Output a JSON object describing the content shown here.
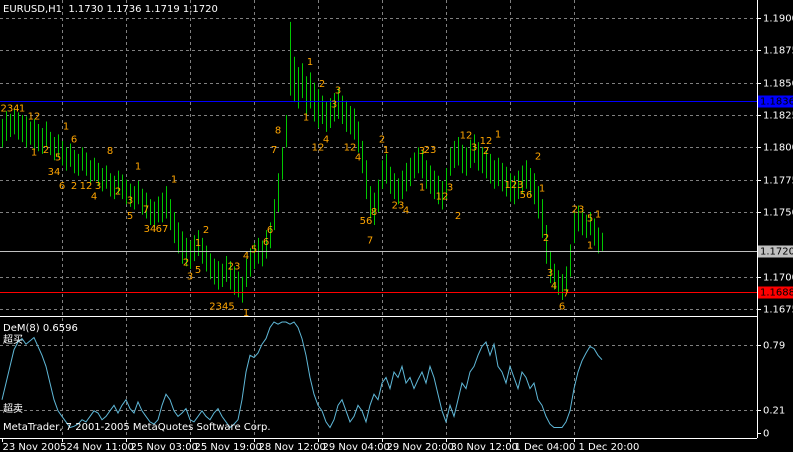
{
  "chart_data": {
    "type": "ohlc",
    "title": "EURUSD,H1  1.1730 1.1736 1.1719 1.1720",
    "color": "#00c800",
    "grid": true,
    "xlim": [
      -0.5,
      188.75
    ],
    "xticks": [
      {
        "value": 0,
        "label": "23 Nov 2005"
      },
      {
        "value": 15,
        "label": "24 Nov 11:00"
      },
      {
        "value": 31,
        "label": "25 Nov 03:00"
      },
      {
        "value": 47,
        "label": "25 Nov 19:00"
      },
      {
        "value": 63,
        "label": "28 Nov 12:00"
      },
      {
        "value": 79,
        "label": "29 Nov 04:00"
      },
      {
        "value": 95,
        "label": "29 Nov 20:00"
      },
      {
        "value": 111,
        "label": "30 Nov 12:00"
      },
      {
        "value": 127,
        "label": "1 Dec 04:00"
      },
      {
        "value": 143,
        "label": "1 Dec 20:00"
      }
    ],
    "ylim": [
      1.16704,
      1.19139
    ],
    "yticks": [
      {
        "value": 1.19,
        "label": "1.1900"
      },
      {
        "value": 1.1875,
        "label": "1.1875"
      },
      {
        "value": 1.185,
        "label": "1.1850"
      },
      {
        "value": 1.1825,
        "label": "1.1825"
      },
      {
        "value": 1.18,
        "label": "1.1800"
      },
      {
        "value": 1.1775,
        "label": "1.1775"
      },
      {
        "value": 1.175,
        "label": "1.1750"
      },
      {
        "value": 1.17,
        "label": "1.1700"
      },
      {
        "value": 1.1675,
        "label": "1.1675"
      }
    ],
    "high": [
      1.1822,
      1.1828,
      1.1826,
      1.183,
      1.1827,
      1.1825,
      1.1824,
      1.182,
      1.1822,
      1.1818,
      1.1815,
      1.182,
      1.1812,
      1.1808,
      1.181,
      1.1805,
      1.18,
      1.1803,
      1.1798,
      1.1795,
      1.18,
      1.1796,
      1.179,
      1.1792,
      1.1788,
      1.1784,
      1.1786,
      1.178,
      1.1778,
      1.1782,
      1.1779,
      1.1775,
      1.1772,
      1.177,
      1.1774,
      1.1768,
      1.1765,
      1.176,
      1.1758,
      1.1762,
      1.1765,
      1.177,
      1.176,
      1.175,
      1.1742,
      1.1735,
      1.173,
      1.1728,
      1.1732,
      1.1736,
      1.173,
      1.1724,
      1.1718,
      1.1714,
      1.1712,
      1.171,
      1.1716,
      1.1712,
      1.1708,
      1.1704,
      1.17,
      1.1714,
      1.1722,
      1.1726,
      1.173,
      1.1728,
      1.1736,
      1.1742,
      1.176,
      1.178,
      1.18,
      1.1825,
      1.1897,
      1.187,
      1.1862,
      1.1865,
      1.1855,
      1.1858,
      1.185,
      1.1845,
      1.184,
      1.1835,
      1.1838,
      1.1842,
      1.1846,
      1.184,
      1.1836,
      1.1832,
      1.183,
      1.182,
      1.1805,
      1.179,
      1.177,
      1.1765,
      1.1775,
      1.179,
      1.1795,
      1.1785,
      1.178,
      1.1776,
      1.1782,
      1.1788,
      1.1792,
      1.1796,
      1.18,
      1.1798,
      1.179,
      1.1786,
      1.1782,
      1.1778,
      1.1774,
      1.1784,
      1.18,
      1.1805,
      1.1808,
      1.1802,
      1.18,
      1.1806,
      1.181,
      1.1804,
      1.18,
      1.1798,
      1.1795,
      1.179,
      1.1792,
      1.1788,
      1.1785,
      1.178,
      1.1778,
      1.1782,
      1.1786,
      1.179,
      1.1784,
      1.178,
      1.177,
      1.176,
      1.174,
      1.172,
      1.171,
      1.1705,
      1.1702,
      1.1708,
      1.1725,
      1.175,
      1.1755,
      1.1752,
      1.1748,
      1.175,
      1.1745,
      1.1738,
      1.1734
    ],
    "low": [
      1.18,
      1.1805,
      1.1808,
      1.181,
      1.1806,
      1.1804,
      1.18,
      1.1802,
      1.1798,
      1.1797,
      1.1795,
      1.18,
      1.1794,
      1.179,
      1.1792,
      1.1786,
      1.1782,
      1.1785,
      1.178,
      1.1778,
      1.1782,
      1.1778,
      1.1772,
      1.1774,
      1.177,
      1.1766,
      1.1768,
      1.1762,
      1.176,
      1.1764,
      1.176,
      1.1756,
      1.1754,
      1.1752,
      1.1756,
      1.1748,
      1.1745,
      1.174,
      1.1738,
      1.1742,
      1.1742,
      1.1745,
      1.1736,
      1.1726,
      1.1718,
      1.171,
      1.1708,
      1.1706,
      1.1712,
      1.1716,
      1.171,
      1.1704,
      1.1698,
      1.1694,
      1.169,
      1.1692,
      1.1696,
      1.169,
      1.1686,
      1.1684,
      1.168,
      1.1692,
      1.17,
      1.1706,
      1.171,
      1.1708,
      1.1714,
      1.1722,
      1.1736,
      1.175,
      1.1775,
      1.18,
      1.184,
      1.1835,
      1.183,
      1.1838,
      1.1825,
      1.183,
      1.182,
      1.1815,
      1.1818,
      1.1812,
      1.1815,
      1.182,
      1.1822,
      1.1818,
      1.1812,
      1.181,
      1.1806,
      1.1796,
      1.178,
      1.176,
      1.1745,
      1.174,
      1.175,
      1.1768,
      1.1772,
      1.1764,
      1.176,
      1.1756,
      1.176,
      1.1766,
      1.177,
      1.1776,
      1.178,
      1.1776,
      1.1768,
      1.1764,
      1.176,
      1.1756,
      1.1752,
      1.176,
      1.1778,
      1.1784,
      1.1786,
      1.178,
      1.1778,
      1.1784,
      1.1788,
      1.1782,
      1.178,
      1.1776,
      1.1772,
      1.1768,
      1.177,
      1.1766,
      1.1762,
      1.1758,
      1.1756,
      1.176,
      1.1764,
      1.1768,
      1.1762,
      1.1756,
      1.1745,
      1.173,
      1.171,
      1.1695,
      1.169,
      1.1686,
      1.1682,
      1.1688,
      1.17,
      1.1726,
      1.1735,
      1.1732,
      1.173,
      1.1732,
      1.1724,
      1.1718,
      1.172
    ],
    "levels": [
      {
        "value": 1.1836,
        "label": "1.1836",
        "color": "#0000ff"
      },
      {
        "value": 1.172,
        "label": "1.1720",
        "color": "#c0c0c0"
      },
      {
        "value": 1.1688,
        "label": "1.1688",
        "color": "#ff0000"
      }
    ],
    "annotation_color": "#ffa500",
    "annotations": [
      {
        "x": 2,
        "y": 1.183,
        "text": "234"
      },
      {
        "x": 5,
        "y": 1.183,
        "text": "1"
      },
      {
        "x": 8,
        "y": 1.1824,
        "text": "12"
      },
      {
        "x": 16,
        "y": 1.1816,
        "text": "1"
      },
      {
        "x": 8,
        "y": 1.1796,
        "text": "1"
      },
      {
        "x": 11,
        "y": 1.1798,
        "text": "2"
      },
      {
        "x": 14,
        "y": 1.1792,
        "text": "5"
      },
      {
        "x": 18,
        "y": 1.1806,
        "text": "6"
      },
      {
        "x": 13,
        "y": 1.1781,
        "text": "34"
      },
      {
        "x": 15,
        "y": 1.177,
        "text": "6"
      },
      {
        "x": 18,
        "y": 1.177,
        "text": "2"
      },
      {
        "x": 21,
        "y": 1.177,
        "text": "12"
      },
      {
        "x": 24,
        "y": 1.177,
        "text": "3"
      },
      {
        "x": 23,
        "y": 1.1762,
        "text": "4"
      },
      {
        "x": 27,
        "y": 1.1797,
        "text": "8"
      },
      {
        "x": 34,
        "y": 1.1785,
        "text": "1"
      },
      {
        "x": 29,
        "y": 1.1766,
        "text": "2"
      },
      {
        "x": 32,
        "y": 1.1759,
        "text": "3"
      },
      {
        "x": 32,
        "y": 1.1747,
        "text": "5"
      },
      {
        "x": 36,
        "y": 1.1752,
        "text": "7"
      },
      {
        "x": 37,
        "y": 1.1737,
        "text": "34"
      },
      {
        "x": 40,
        "y": 1.1737,
        "text": "67"
      },
      {
        "x": 43,
        "y": 1.1775,
        "text": "1"
      },
      {
        "x": 51,
        "y": 1.1736,
        "text": "2"
      },
      {
        "x": 49,
        "y": 1.1726,
        "text": "1"
      },
      {
        "x": 46,
        "y": 1.1711,
        "text": "2"
      },
      {
        "x": 47,
        "y": 1.17,
        "text": "3"
      },
      {
        "x": 49,
        "y": 1.1705,
        "text": "5"
      },
      {
        "x": 58,
        "y": 1.1708,
        "text": "23"
      },
      {
        "x": 55,
        "y": 1.1677,
        "text": "2345"
      },
      {
        "x": 61,
        "y": 1.1672,
        "text": "1"
      },
      {
        "x": 61,
        "y": 1.1716,
        "text": "4"
      },
      {
        "x": 63,
        "y": 1.1721,
        "text": "5"
      },
      {
        "x": 66,
        "y": 1.1727,
        "text": "6"
      },
      {
        "x": 67,
        "y": 1.1736,
        "text": "6"
      },
      {
        "x": 68,
        "y": 1.1798,
        "text": "7"
      },
      {
        "x": 69,
        "y": 1.1813,
        "text": "8"
      },
      {
        "x": 77,
        "y": 1.1866,
        "text": "1"
      },
      {
        "x": 80,
        "y": 1.1849,
        "text": "2"
      },
      {
        "x": 84,
        "y": 1.1844,
        "text": "3"
      },
      {
        "x": 76,
        "y": 1.1823,
        "text": "1"
      },
      {
        "x": 81,
        "y": 1.1806,
        "text": "4"
      },
      {
        "x": 79,
        "y": 1.18,
        "text": "12"
      },
      {
        "x": 83,
        "y": 1.1833,
        "text": "3"
      },
      {
        "x": 87,
        "y": 1.18,
        "text": "12"
      },
      {
        "x": 89,
        "y": 1.1792,
        "text": "4"
      },
      {
        "x": 95,
        "y": 1.1806,
        "text": "2"
      },
      {
        "x": 96,
        "y": 1.1798,
        "text": "1"
      },
      {
        "x": 91,
        "y": 1.1743,
        "text": "56"
      },
      {
        "x": 93,
        "y": 1.175,
        "text": "8"
      },
      {
        "x": 92,
        "y": 1.1728,
        "text": "7"
      },
      {
        "x": 99,
        "y": 1.1755,
        "text": "23"
      },
      {
        "x": 101,
        "y": 1.1751,
        "text": "4"
      },
      {
        "x": 105,
        "y": 1.1797,
        "text": "3"
      },
      {
        "x": 107,
        "y": 1.1798,
        "text": "23"
      },
      {
        "x": 105,
        "y": 1.1769,
        "text": "1"
      },
      {
        "x": 110,
        "y": 1.1762,
        "text": "12"
      },
      {
        "x": 112,
        "y": 1.1769,
        "text": "3"
      },
      {
        "x": 114,
        "y": 1.1747,
        "text": "2"
      },
      {
        "x": 116,
        "y": 1.1809,
        "text": "12"
      },
      {
        "x": 118,
        "y": 1.18,
        "text": "3"
      },
      {
        "x": 121,
        "y": 1.1805,
        "text": "12"
      },
      {
        "x": 121,
        "y": 1.1797,
        "text": "2"
      },
      {
        "x": 124,
        "y": 1.181,
        "text": "1"
      },
      {
        "x": 128,
        "y": 1.1771,
        "text": "123"
      },
      {
        "x": 131,
        "y": 1.1763,
        "text": "56"
      },
      {
        "x": 134,
        "y": 1.1793,
        "text": "2"
      },
      {
        "x": 135,
        "y": 1.1768,
        "text": "1"
      },
      {
        "x": 136,
        "y": 1.173,
        "text": "2"
      },
      {
        "x": 137,
        "y": 1.1703,
        "text": "3"
      },
      {
        "x": 138,
        "y": 1.1693,
        "text": "4"
      },
      {
        "x": 141,
        "y": 1.1687,
        "text": "7"
      },
      {
        "x": 140,
        "y": 1.1677,
        "text": "6"
      },
      {
        "x": 144,
        "y": 1.1752,
        "text": "23"
      },
      {
        "x": 147,
        "y": 1.1745,
        "text": "5"
      },
      {
        "x": 149,
        "y": 1.1748,
        "text": "1"
      },
      {
        "x": 147,
        "y": 1.1724,
        "text": "1"
      }
    ],
    "indicator": {
      "type": "line",
      "title": "DeM(8) 0.6596",
      "overbought_label": "超买",
      "oversold_label": "超卖",
      "color": "#5fb8d8",
      "ylim": [
        -0.045,
        1.036
      ],
      "yticks": [
        0.79,
        0.21,
        0
      ],
      "values": [
        0.3,
        0.45,
        0.6,
        0.75,
        0.82,
        0.85,
        0.8,
        0.83,
        0.86,
        0.78,
        0.7,
        0.6,
        0.45,
        0.3,
        0.2,
        0.15,
        0.1,
        0.05,
        0.06,
        0.08,
        0.12,
        0.1,
        0.15,
        0.2,
        0.18,
        0.12,
        0.15,
        0.2,
        0.25,
        0.18,
        0.25,
        0.3,
        0.22,
        0.18,
        0.28,
        0.2,
        0.15,
        0.1,
        0.08,
        0.12,
        0.25,
        0.35,
        0.3,
        0.2,
        0.15,
        0.18,
        0.22,
        0.12,
        0.1,
        0.15,
        0.2,
        0.15,
        0.12,
        0.18,
        0.22,
        0.15,
        0.1,
        0.05,
        0.08,
        0.12,
        0.3,
        0.55,
        0.7,
        0.68,
        0.72,
        0.8,
        0.85,
        0.95,
        1.0,
        0.98,
        1.0,
        1.0,
        0.98,
        1.0,
        0.95,
        0.85,
        0.7,
        0.5,
        0.35,
        0.25,
        0.2,
        0.1,
        0.05,
        0.12,
        0.25,
        0.3,
        0.2,
        0.1,
        0.15,
        0.25,
        0.2,
        0.1,
        0.25,
        0.35,
        0.3,
        0.45,
        0.5,
        0.4,
        0.55,
        0.5,
        0.6,
        0.45,
        0.5,
        0.4,
        0.48,
        0.55,
        0.45,
        0.6,
        0.5,
        0.35,
        0.2,
        0.1,
        0.25,
        0.15,
        0.3,
        0.45,
        0.4,
        0.55,
        0.6,
        0.7,
        0.78,
        0.82,
        0.7,
        0.8,
        0.6,
        0.55,
        0.45,
        0.6,
        0.5,
        0.4,
        0.55,
        0.5,
        0.4,
        0.45,
        0.3,
        0.25,
        0.15,
        0.08,
        0.05,
        0.05,
        0.05,
        0.1,
        0.2,
        0.4,
        0.55,
        0.65,
        0.72,
        0.78,
        0.76,
        0.7,
        0.66
      ]
    },
    "copyright": "MetaTrader, 7 2001-2005 MetaQuotes Software Corp."
  }
}
